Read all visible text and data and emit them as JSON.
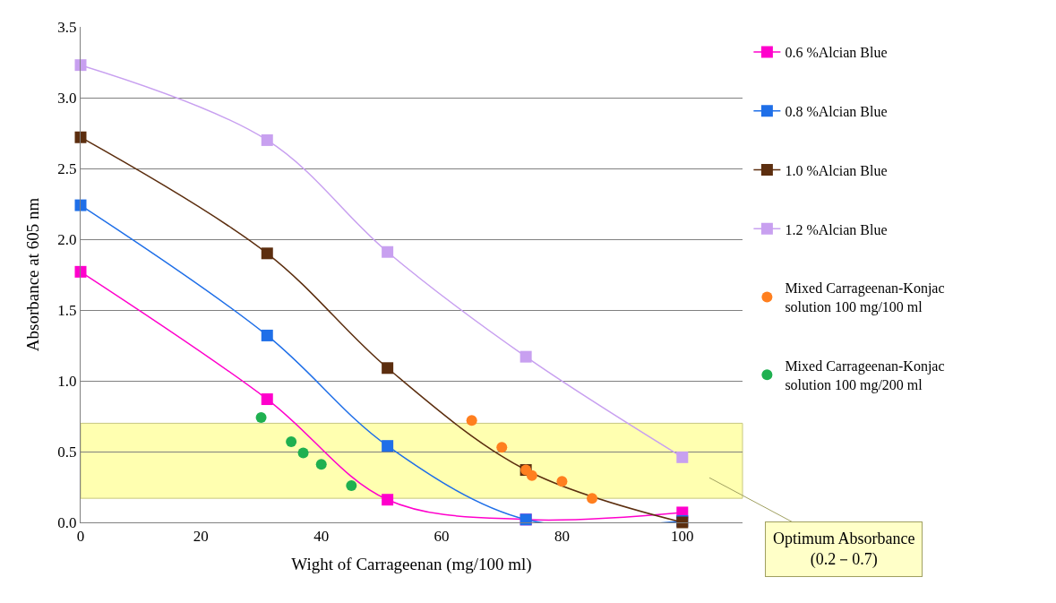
{
  "chart_data": {
    "type": "line",
    "xlabel": "Wight of Carrageenan (mg/100 ml)",
    "ylabel": "Absorbance at 605 nm",
    "xlim": [
      0,
      110
    ],
    "ylim": [
      0,
      3.5
    ],
    "xticks": [
      0,
      20,
      40,
      60,
      80,
      100
    ],
    "yticks": [
      {
        "value": 0,
        "label": "0.0"
      },
      {
        "value": 0.5,
        "label": "0.5"
      },
      {
        "value": 1,
        "label": "1.0"
      },
      {
        "value": 1.5,
        "label": "1.5"
      },
      {
        "value": 2,
        "label": "2.0"
      },
      {
        "value": 2.5,
        "label": "2.5"
      },
      {
        "value": 3,
        "label": "3.0"
      },
      {
        "value": 3.5,
        "label": "3.5"
      }
    ],
    "grid": "y",
    "legend": "right",
    "series": [
      {
        "name": "0.6 %Alcian Blue",
        "color": "#ff00cc",
        "marker": "square",
        "x": [
          0,
          31,
          51,
          74,
          100
        ],
        "values": [
          1.77,
          0.87,
          0.16,
          0.02,
          0.07
        ]
      },
      {
        "name": "0.8 %Alcian Blue",
        "color": "#1f6fe8",
        "marker": "square",
        "x": [
          0,
          31,
          51,
          74,
          100
        ],
        "values": [
          2.24,
          1.32,
          0.54,
          0.02,
          0.01
        ]
      },
      {
        "name": "1.0 %Alcian Blue",
        "color": "#5c2e0f",
        "marker": "square",
        "x": [
          0,
          31,
          51,
          74,
          100
        ],
        "values": [
          2.72,
          1.9,
          1.09,
          0.37,
          0
        ]
      },
      {
        "name": "1.2 %Alcian Blue",
        "color": "#c8a0f0",
        "marker": "square",
        "x": [
          0,
          31,
          51,
          74,
          100
        ],
        "values": [
          3.23,
          2.7,
          1.91,
          1.17,
          0.46
        ]
      },
      {
        "name": "Mixed Carrageenan-Konjac\nsolution 100 mg/100 ml",
        "type": "scatter",
        "color": "#ff7f1f",
        "marker": "circle",
        "x": [
          65,
          70,
          74,
          75,
          80,
          85
        ],
        "values": [
          0.72,
          0.53,
          0.37,
          0.33,
          0.29,
          0.17
        ]
      },
      {
        "name": "Mixed Carrageenan-Konjac\nsolution 100 mg/200 ml",
        "type": "scatter",
        "color": "#1fb050",
        "marker": "circle",
        "x": [
          30,
          35,
          37,
          40,
          45
        ],
        "values": [
          0.74,
          0.57,
          0.49,
          0.41,
          0.26
        ]
      }
    ],
    "bands": [
      {
        "axis": "y",
        "from": 0.17,
        "to": 0.7,
        "color": "#ffffb0"
      }
    ],
    "annotations": [
      "Optimum Absorbance\n(0.2－0.7)"
    ]
  }
}
